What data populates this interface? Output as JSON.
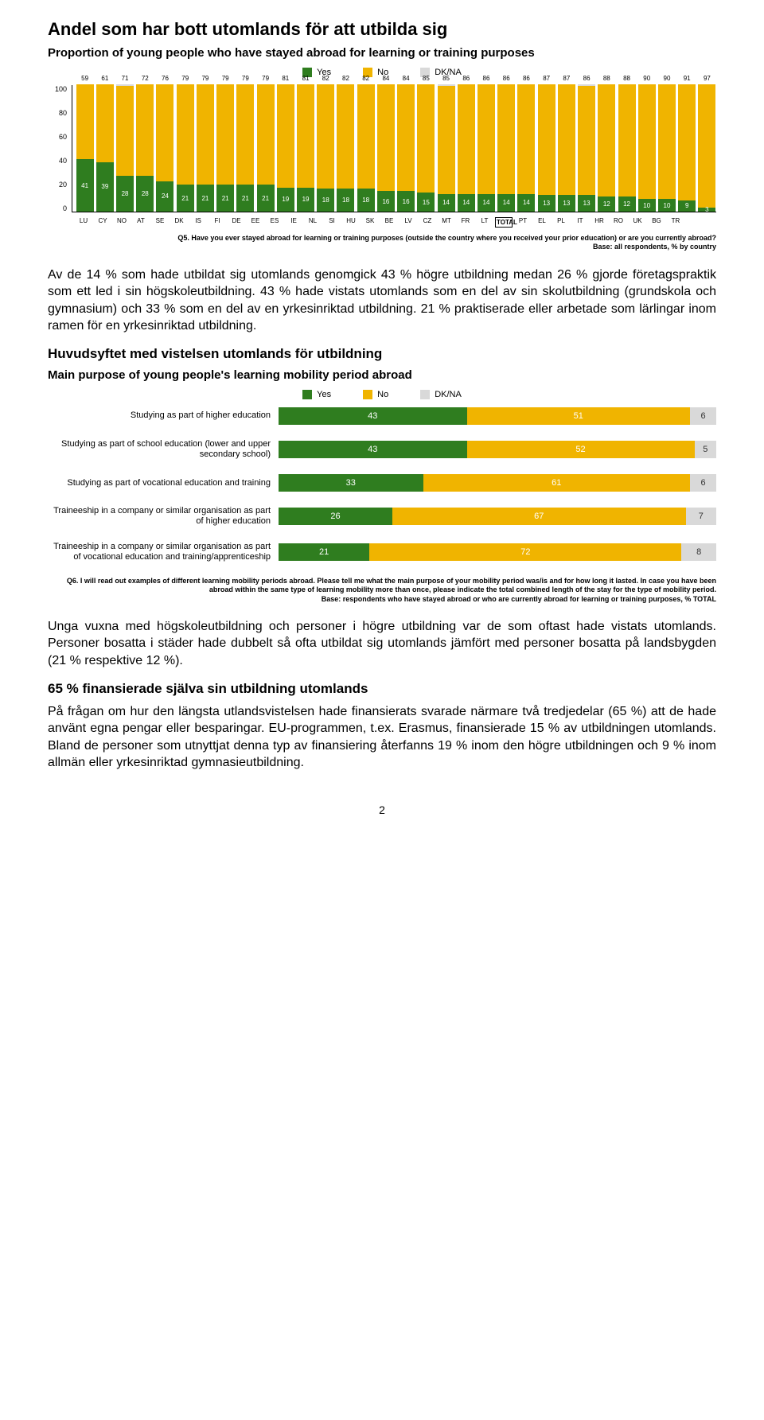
{
  "colors": {
    "yes": "#2f7d1f",
    "no": "#f0b400",
    "dkna": "#d9d9d9",
    "text": "#000000",
    "background": "#ffffff"
  },
  "section1": {
    "heading": "Andel som har bott utomlands för att utbilda sig",
    "chart_title": "Proportion of young people who have stayed abroad for learning or training purposes",
    "legend": {
      "yes": "Yes",
      "no": "No",
      "dkna": "DK/NA"
    },
    "type": "stacked-bar-vertical",
    "y_ticks": [
      "100",
      "80",
      "60",
      "40",
      "20",
      "0"
    ],
    "ymax": 100,
    "countries": [
      {
        "code": "LU",
        "yes": 41,
        "no": 59
      },
      {
        "code": "CY",
        "yes": 39,
        "no": 61
      },
      {
        "code": "NO",
        "yes": 28,
        "no": 71,
        "dkna": 1
      },
      {
        "code": "AT",
        "yes": 28,
        "no": 72
      },
      {
        "code": "SE",
        "yes": 24,
        "no": 76
      },
      {
        "code": "DK",
        "yes": 21,
        "no": 79
      },
      {
        "code": "IS",
        "yes": 21,
        "no": 79
      },
      {
        "code": "FI",
        "yes": 21,
        "no": 79
      },
      {
        "code": "DE",
        "yes": 21,
        "no": 79
      },
      {
        "code": "EE",
        "yes": 21,
        "no": 79
      },
      {
        "code": "ES",
        "yes": 19,
        "no": 81
      },
      {
        "code": "IE",
        "yes": 19,
        "no": 81
      },
      {
        "code": "NL",
        "yes": 18,
        "no": 82
      },
      {
        "code": "SI",
        "yes": 18,
        "no": 82
      },
      {
        "code": "HU",
        "yes": 18,
        "no": 82
      },
      {
        "code": "SK",
        "yes": 16,
        "no": 84
      },
      {
        "code": "BE",
        "yes": 16,
        "no": 84
      },
      {
        "code": "LV",
        "yes": 15,
        "no": 85
      },
      {
        "code": "CZ",
        "yes": 14,
        "no": 85,
        "dkna": 1
      },
      {
        "code": "MT",
        "yes": 14,
        "no": 86
      },
      {
        "code": "FR",
        "yes": 14,
        "no": 86
      },
      {
        "code": "LT",
        "yes": 14,
        "no": 86
      },
      {
        "code": "TOTAL",
        "yes": 14,
        "no": 86,
        "total": true
      },
      {
        "code": "PT",
        "yes": 13,
        "no": 87
      },
      {
        "code": "EL",
        "yes": 13,
        "no": 87
      },
      {
        "code": "PL",
        "yes": 13,
        "no": 86,
        "dkna": 1
      },
      {
        "code": "IT",
        "yes": 12,
        "no": 88
      },
      {
        "code": "HR",
        "yes": 12,
        "no": 88
      },
      {
        "code": "RO",
        "yes": 10,
        "no": 90
      },
      {
        "code": "UK",
        "yes": 10,
        "no": 90
      },
      {
        "code": "BG",
        "yes": 9,
        "no": 91
      },
      {
        "code": "TR",
        "yes": 3,
        "no": 97
      }
    ],
    "source_text": "Q5. Have you ever stayed abroad for learning or training purposes (outside the country where you received your prior education) or are you currently abroad?\nBase: all respondents, % by country"
  },
  "paragraph1": "Av de 14 % som hade utbildat sig utomlands genomgick 43 % högre utbildning medan 26 % gjorde företagspraktik som ett led i sin högskoleutbildning. 43 % hade vistats utomlands som en del av sin skolutbildning (grundskola och gymnasium) och 33 % som en del av en yrkesinriktad utbildning. 21 % praktiserade eller arbetade som lärlingar inom ramen för en yrkesinriktad utbildning.",
  "section2": {
    "heading": "Huvudsyftet med vistelsen utomlands för utbildning",
    "chart_title": "Main purpose of young people's learning mobility period abroad",
    "legend": {
      "yes": "Yes",
      "no": "No",
      "dkna": "DK/NA"
    },
    "type": "stacked-bar-horizontal",
    "rows": [
      {
        "label": "Studying as part of higher education",
        "yes": 43,
        "no": 51,
        "dkna": 6
      },
      {
        "label": "Studying as part of school education (lower and upper secondary school)",
        "yes": 43,
        "no": 52,
        "dkna": 5
      },
      {
        "label": "Studying as part of vocational education and training",
        "yes": 33,
        "no": 61,
        "dkna": 6
      },
      {
        "label": "Traineeship in a company or similar organisation as part of higher education",
        "yes": 26,
        "no": 67,
        "dkna": 7
      },
      {
        "label": "Traineeship in a company or similar organisation as part of vocational education and training/apprenticeship",
        "yes": 21,
        "no": 72,
        "dkna": 8
      }
    ],
    "source_text": "Q6. I will read out examples of different learning mobility periods abroad. Please tell me what the main purpose of your mobility period was/is and for how long it lasted. In case you have been abroad within the same type of learning mobility more than once, please indicate the total combined length of the stay for the type of mobility period.\nBase: respondents who have stayed abroad or who are currently abroad for learning or training purposes, % TOTAL"
  },
  "paragraph2": "Unga vuxna med högskoleutbildning och personer i högre utbildning var de som oftast hade vistats utomlands. Personer bosatta i städer hade dubbelt så ofta utbildat sig utomlands jämfört med personer bosatta på landsbygden (21 % respektive 12 %).",
  "section3": {
    "heading": "65 % finansierade själva sin utbildning utomlands",
    "paragraph": "På frågan om hur den längsta utlandsvistelsen hade finansierats svarade närmare två tredjedelar (65 %) att de hade använt egna pengar eller besparingar. EU-programmen, t.ex. Erasmus, finansierade 15 % av utbildningen utomlands. Bland de personer som utnyttjat denna typ av finansiering återfanns 19 % inom den högre utbildningen och 9 % inom allmän eller yrkesinriktad gymnasieutbildning."
  },
  "page_number": "2"
}
